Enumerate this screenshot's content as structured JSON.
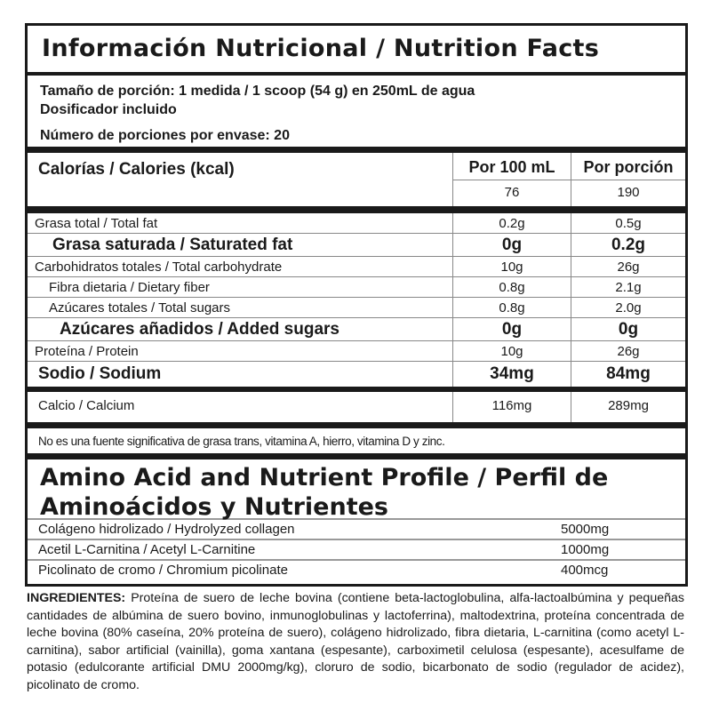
{
  "title": "Información Nutricional / Nutrition Facts",
  "serving": {
    "size": "Tamaño de porción: 1 medida / 1 scoop (54 g) en 250mL de agua",
    "dispenser": "Dosificador incluido",
    "servings": "Número de porciones por envase: 20"
  },
  "calories": {
    "label": "Calorías / Calories (kcal)",
    "col1_header": "Por 100 mL",
    "col2_header": "Por porción",
    "per100": "76",
    "perServing": "190"
  },
  "nutrients": [
    {
      "label": "Grasa total / Total fat",
      "per100": "0.2g",
      "perServing": "0.5g"
    },
    {
      "label": "Grasa saturada / Saturated fat",
      "per100": "0g",
      "perServing": "0.2g"
    },
    {
      "label": "Carbohidratos totales / Total carbohydrate",
      "per100": "10g",
      "perServing": "26g"
    },
    {
      "label": "Fibra dietaria / Dietary fiber",
      "per100": "0.8g",
      "perServing": "2.1g"
    },
    {
      "label": "Azúcares totales / Total sugars",
      "per100": "0.8g",
      "perServing": "2.0g"
    },
    {
      "label": "Azúcares añadidos / Added sugars",
      "per100": "0g",
      "perServing": "0g"
    },
    {
      "label": "Proteína / Protein",
      "per100": "10g",
      "perServing": "26g"
    },
    {
      "label": "Sodio / Sodium",
      "per100": "34mg",
      "perServing": "84mg"
    },
    {
      "label": "Calcio / Calcium",
      "per100": "116mg",
      "perServing": "289mg"
    }
  ],
  "footnote": "No es una fuente significativa de grasa trans, vitamina A, hierro, vitamina D y zinc.",
  "amino": {
    "title": "Amino Acid and Nutrient Profile / Perfil de Aminoácidos y Nutrientes",
    "items": [
      {
        "label": "Colágeno hidrolizado / Hydrolyzed collagen",
        "value": "5000mg"
      },
      {
        "label": "Acetil L-Carnitina / Acetyl L-Carnitine",
        "value": "1000mg"
      },
      {
        "label": "Picolinato de cromo / Chromium picolinate",
        "value": "400mcg"
      }
    ]
  },
  "ingredients": {
    "label": "INGREDIENTES:",
    "text": "Proteína de suero de leche bovina (contiene beta-lactoglobulina, alfa-lactoalbúmina y pequeñas cantidades de albúmina de suero bovino, inmunoglobulinas y lactoferrina), maltodextrina, proteína concentrada de leche bovina (80% caseína, 20% proteína de suero), colágeno hidrolizado, fibra dietaria, L-carnitina (como acetyl L-carnitina), sabor artificial (vainilla), goma xantana (espesante), carboximetil celulosa (espesante), acesulfame de potasio (edulcorante artificial DMU 2000mg/kg), cloruro de sodio, bicarbonato de sodio (regulador de acidez), picolinato de cromo."
  }
}
